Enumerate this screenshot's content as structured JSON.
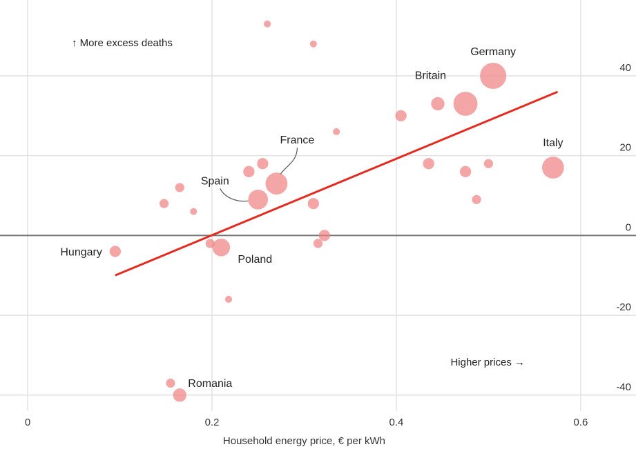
{
  "chart_data": {
    "type": "scatter",
    "xlabel": "Household energy price, € per kWh",
    "xlim": [
      -0.03,
      0.66
    ],
    "ylim": [
      -44,
      59
    ],
    "x_ticks": [
      0,
      0.2,
      0.4,
      0.6
    ],
    "y_ticks": [
      40,
      20,
      0,
      -20,
      -40
    ],
    "grid": true,
    "annotations": {
      "top_left": "↑ More excess deaths",
      "bottom_right": "Higher prices →"
    },
    "colors": {
      "bubble": "#f08080",
      "trend": "#e32b20",
      "zero_line": "#777777",
      "grid": "#e2e2e2"
    },
    "trend_line": {
      "x": [
        0.095,
        0.575
      ],
      "y": [
        -10,
        36
      ]
    },
    "points": [
      {
        "x": 0.26,
        "y": 53,
        "size": 1,
        "label": ""
      },
      {
        "x": 0.31,
        "y": 48,
        "size": 1,
        "label": ""
      },
      {
        "x": 0.505,
        "y": 40,
        "size": 10,
        "label": "Germany"
      },
      {
        "x": 0.475,
        "y": 33,
        "size": 9,
        "label": "Britain"
      },
      {
        "x": 0.445,
        "y": 33,
        "size": 4,
        "label": ""
      },
      {
        "x": 0.405,
        "y": 30,
        "size": 3,
        "label": ""
      },
      {
        "x": 0.335,
        "y": 26,
        "size": 1,
        "label": ""
      },
      {
        "x": 0.57,
        "y": 17,
        "size": 8,
        "label": "Italy"
      },
      {
        "x": 0.435,
        "y": 18,
        "size": 3,
        "label": ""
      },
      {
        "x": 0.475,
        "y": 16,
        "size": 3,
        "label": ""
      },
      {
        "x": 0.5,
        "y": 18,
        "size": 2,
        "label": ""
      },
      {
        "x": 0.487,
        "y": 9,
        "size": 2,
        "label": ""
      },
      {
        "x": 0.27,
        "y": 13,
        "size": 8,
        "label": "France"
      },
      {
        "x": 0.255,
        "y": 18,
        "size": 3,
        "label": ""
      },
      {
        "x": 0.24,
        "y": 16,
        "size": 3,
        "label": ""
      },
      {
        "x": 0.25,
        "y": 9,
        "size": 7,
        "label": "Spain"
      },
      {
        "x": 0.165,
        "y": 12,
        "size": 2,
        "label": ""
      },
      {
        "x": 0.148,
        "y": 8,
        "size": 2,
        "label": ""
      },
      {
        "x": 0.18,
        "y": 6,
        "size": 1,
        "label": ""
      },
      {
        "x": 0.31,
        "y": 8,
        "size": 3,
        "label": ""
      },
      {
        "x": 0.322,
        "y": 0,
        "size": 3,
        "label": ""
      },
      {
        "x": 0.315,
        "y": -2,
        "size": 2,
        "label": ""
      },
      {
        "x": 0.21,
        "y": -3,
        "size": 6,
        "label": "Poland"
      },
      {
        "x": 0.198,
        "y": -2,
        "size": 2,
        "label": ""
      },
      {
        "x": 0.095,
        "y": -4,
        "size": 3,
        "label": "Hungary"
      },
      {
        "x": 0.218,
        "y": -16,
        "size": 1,
        "label": ""
      },
      {
        "x": 0.155,
        "y": -37,
        "size": 2,
        "label": ""
      },
      {
        "x": 0.165,
        "y": -40,
        "size": 4,
        "label": "Romania"
      }
    ]
  }
}
